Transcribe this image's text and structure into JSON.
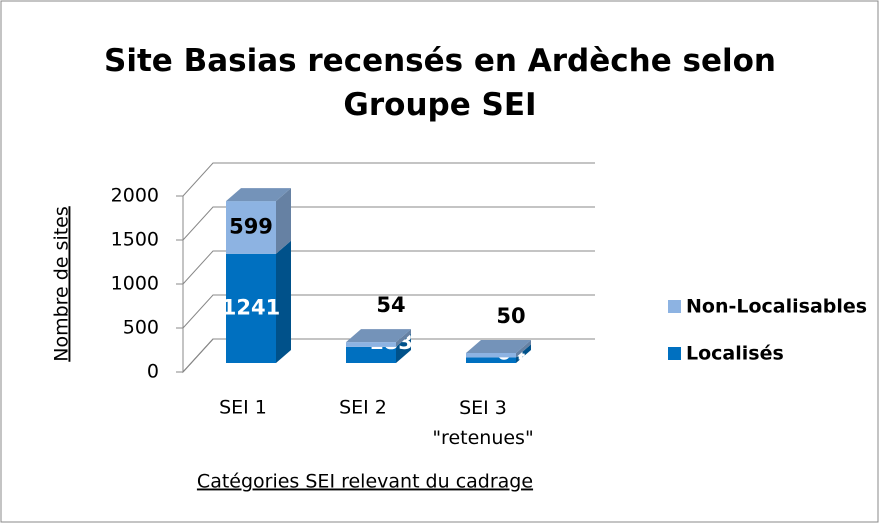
{
  "chart_data": {
    "type": "bar3d_stacked",
    "title": "Site Basias recensés en Ardèche selon Groupe SEI",
    "x_label": "Catégories SEI relevant du cadrage",
    "y_label": "Nombre de sites",
    "categories": [
      "SEI 1",
      "SEI 2",
      "SEI 3 \"retenues\""
    ],
    "series": [
      {
        "name": "Localisés",
        "color": "#0070c0",
        "values": [
          1241,
          183,
          64
        ]
      },
      {
        "name": "Non-Localisables",
        "color": "#8db3e2",
        "values": [
          599,
          54,
          50
        ]
      }
    ],
    "ylim": [
      0,
      2000
    ],
    "yticks": [
      0,
      500,
      1000,
      1500,
      2000
    ],
    "grid": true,
    "legend": "right"
  }
}
